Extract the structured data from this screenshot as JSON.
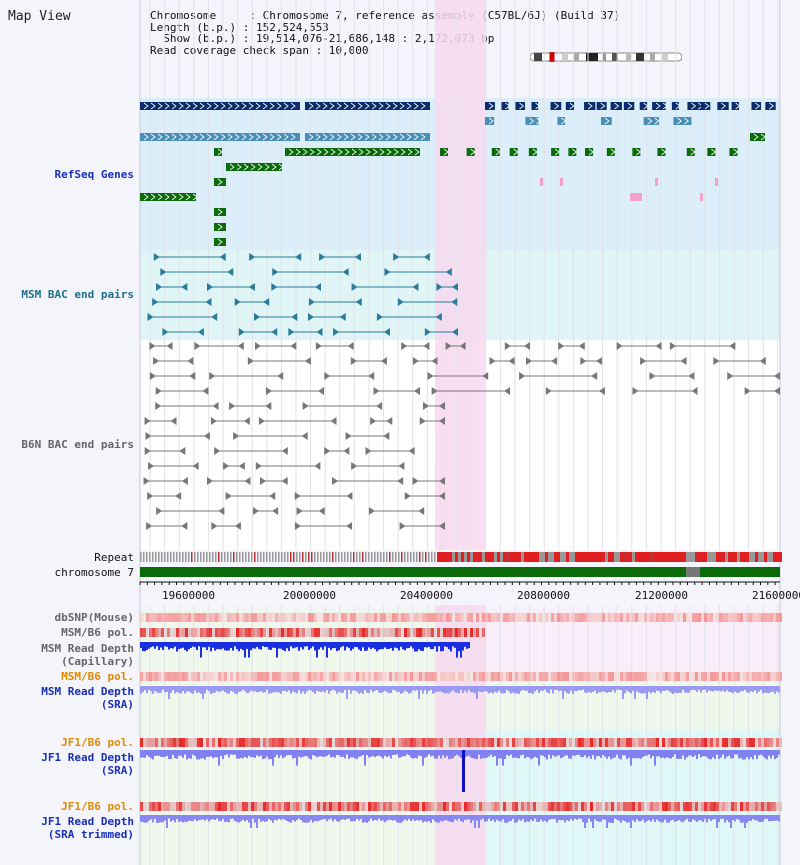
{
  "title": "Map View",
  "info": {
    "line1": "Chromosome     : Chromosome 7, reference assembly (C57BL/6J) (Build 37)",
    "line2": "Length (b.p.) : 152,524,553",
    "line3": "  Show (b.p.) : 19,514,076-21,686,148 : 2,172,073 bp",
    "line4": "Read coverage check span : 10,000"
  },
  "tracks": {
    "refseq": "RefSeq Genes",
    "msm_bac": "MSM BAC end pairs",
    "b6n_bac": "B6N BAC end pairs",
    "repeat": "Repeat",
    "chromosome": "chromosome 7",
    "dbsnp": "dbSNP(Mouse)",
    "msm_b6_pol": "MSM/B6 pol.",
    "msm_depth_cap_1": "MSM Read Depth",
    "msm_depth_cap_2": "(Capillary)",
    "msm_b6_pol2": "MSM/B6 pol.",
    "msm_depth_sra_1": "MSM Read Depth",
    "msm_depth_sra_2": "(SRA)",
    "jf1_b6_pol": "JF1/B6 pol.",
    "jf1_depth_sra_1": "JF1 Read Depth",
    "jf1_depth_sra_2": "(SRA)",
    "jf1_b6_pol2": "JF1/B6 pol.",
    "jf1_depth_trim_1": "JF1 Read Depth",
    "jf1_depth_trim_2": "(SRA trimmed)"
  },
  "axis_ticks": [
    "19600000",
    "20000000",
    "20400000",
    "20800000",
    "21200000",
    "21600000"
  ],
  "colors": {
    "refseq_dark": "#0b2d6b",
    "refseq_mid": "#4a8fb8",
    "refseq_green": "#0b6b0b",
    "highlight": "#f8d8f0",
    "snp_red": "#e83030",
    "depth_blue": "#1a2fe0",
    "depth_light": "#9a9af0"
  }
}
